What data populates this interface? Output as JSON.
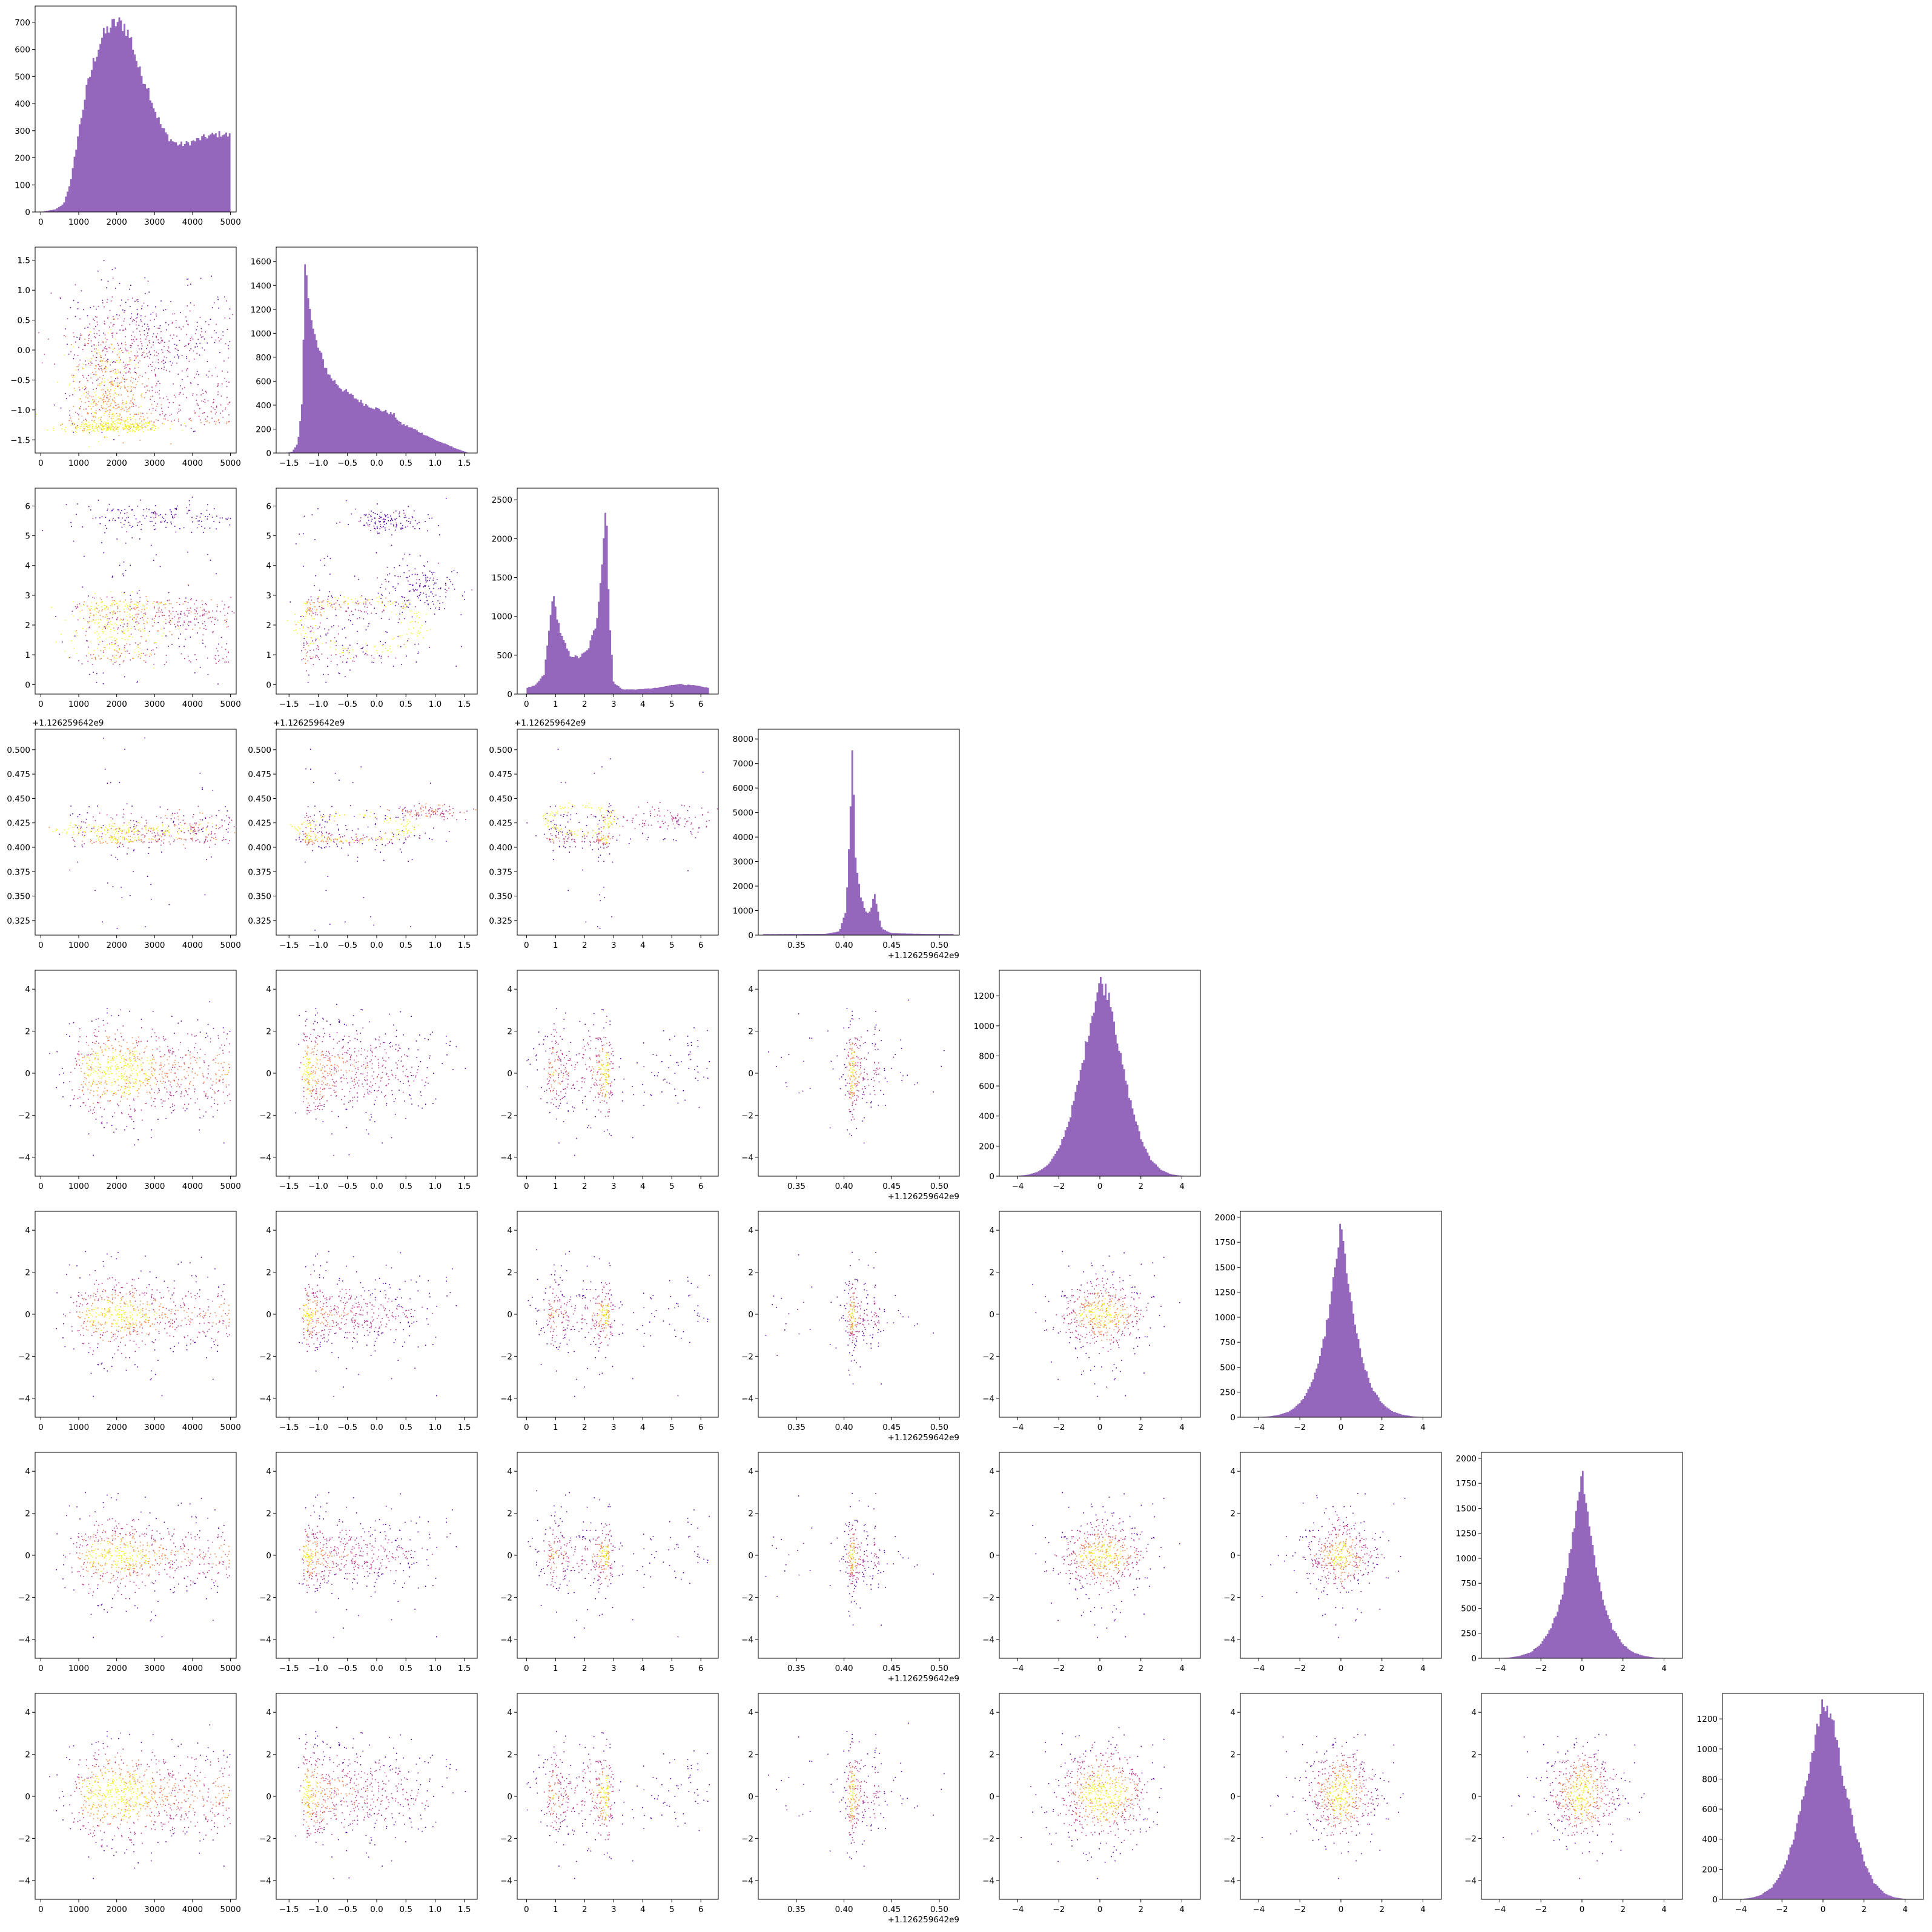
{
  "chart_data": {
    "type": "corner_plot",
    "description_free": true,
    "n_variables": 8,
    "colors": {
      "histogram": "#9467bd",
      "density_cmap": [
        "#0d0887",
        "#5302a3",
        "#8b0aa5",
        "#b83289",
        "#db5c68",
        "#f48849",
        "#febd2a",
        "#f0f921"
      ],
      "frame": "#000000"
    },
    "variables": [
      {
        "ticks": [
          0,
          1000,
          2000,
          3000,
          4000,
          5000
        ],
        "tick_labels": [
          "0",
          "1000",
          "2000",
          "3000",
          "4000",
          "5000"
        ],
        "range": [
          -150,
          5150
        ],
        "offset": ""
      },
      {
        "ticks": [
          -1.5,
          -1.0,
          -0.5,
          0.0,
          0.5,
          1.0,
          1.5
        ],
        "tick_labels": [
          "−1.5",
          "−1.0",
          "−0.5",
          "0.0",
          "0.5",
          "1.0",
          "1.5"
        ],
        "range": [
          -1.72,
          1.72
        ],
        "offset": ""
      },
      {
        "ticks": [
          0,
          1,
          2,
          3,
          4,
          5,
          6
        ],
        "tick_labels": [
          "0",
          "1",
          "2",
          "3",
          "4",
          "5",
          "6"
        ],
        "range": [
          -0.32,
          6.6
        ],
        "offset": ""
      },
      {
        "ticks": [
          0.325,
          0.35,
          0.375,
          0.4,
          0.425,
          0.45,
          0.475,
          0.5
        ],
        "tick_labels": [
          "0.325",
          "0.350",
          "0.375",
          "0.400",
          "0.425",
          "0.450",
          "0.475",
          "0.500"
        ],
        "xticks": [
          0.35,
          0.4,
          0.45,
          0.5
        ],
        "xtick_labels": [
          "0.35",
          "0.40",
          "0.45",
          "0.50"
        ],
        "range": [
          0.31,
          0.521
        ],
        "offset": "+1.126259642e9"
      },
      {
        "ticks": [
          -4,
          -2,
          0,
          2,
          4
        ],
        "tick_labels": [
          "−4",
          "−2",
          "0",
          "2",
          "4"
        ],
        "range": [
          -4.9,
          4.9
        ],
        "offset": ""
      },
      {
        "ticks": [
          -4,
          -2,
          0,
          2,
          4
        ],
        "tick_labels": [
          "−4",
          "−2",
          "0",
          "2",
          "4"
        ],
        "range": [
          -4.9,
          4.9
        ],
        "offset": ""
      },
      {
        "ticks": [
          -4,
          -2,
          0,
          2,
          4
        ],
        "tick_labels": [
          "−4",
          "−2",
          "0",
          "2",
          "4"
        ],
        "range": [
          -4.9,
          4.9
        ],
        "offset": ""
      },
      {
        "ticks": [
          -4,
          -2,
          0,
          2,
          4
        ],
        "tick_labels": [
          "−4",
          "−2",
          "0",
          "2",
          "4"
        ],
        "range": [
          -4.9,
          4.9
        ],
        "offset": ""
      }
    ],
    "histograms": [
      {
        "variable": 0,
        "yticks": [
          0,
          100,
          200,
          300,
          400,
          500,
          600,
          700
        ],
        "ylim": [
          0,
          760
        ],
        "x": [
          0,
          400,
          600,
          800,
          1000,
          1200,
          1400,
          1600,
          1800,
          2000,
          2200,
          2400,
          2600,
          2800,
          3000,
          3200,
          3400,
          3600,
          3800,
          4000,
          4200,
          4400,
          4600,
          4800,
          5000
        ],
        "counts": [
          0,
          10,
          30,
          120,
          300,
          450,
          560,
          640,
          680,
          700,
          690,
          630,
          520,
          470,
          380,
          310,
          270,
          250,
          250,
          260,
          270,
          280,
          285,
          290,
          280
        ]
      },
      {
        "variable": 1,
        "yticks": [
          0,
          200,
          400,
          600,
          800,
          1000,
          1200,
          1400,
          1600
        ],
        "ylim": [
          0,
          1720
        ],
        "x": [
          -1.55,
          -1.45,
          -1.35,
          -1.28,
          -1.22,
          -1.18,
          -1.1,
          -1.0,
          -0.9,
          -0.8,
          -0.6,
          -0.4,
          -0.2,
          0.0,
          0.2,
          0.3,
          0.4,
          0.6,
          0.8,
          1.0,
          1.2,
          1.4,
          1.55
        ],
        "counts": [
          0,
          10,
          80,
          400,
          1650,
          1400,
          1050,
          880,
          750,
          640,
          540,
          470,
          410,
          370,
          340,
          320,
          250,
          210,
          160,
          110,
          70,
          30,
          5
        ]
      },
      {
        "variable": 2,
        "yticks": [
          0,
          500,
          1000,
          1500,
          2000,
          2500
        ],
        "ylim": [
          0,
          2650
        ],
        "x": [
          0,
          0.3,
          0.6,
          0.8,
          0.9,
          1.0,
          1.2,
          1.5,
          1.8,
          2.1,
          2.4,
          2.6,
          2.75,
          2.85,
          3.0,
          3.3,
          3.8,
          4.5,
          5.2,
          5.8,
          6.28
        ],
        "counts": [
          80,
          110,
          250,
          900,
          1300,
          1100,
          750,
          500,
          470,
          560,
          900,
          1700,
          2550,
          1000,
          150,
          60,
          60,
          80,
          130,
          110,
          80
        ]
      },
      {
        "variable": 3,
        "yticks": [
          0,
          1000,
          2000,
          3000,
          4000,
          5000,
          6000,
          7000,
          8000
        ],
        "ylim": [
          0,
          8400
        ],
        "x": [
          0.315,
          0.38,
          0.395,
          0.402,
          0.406,
          0.409,
          0.412,
          0.418,
          0.424,
          0.428,
          0.432,
          0.436,
          0.44,
          0.45,
          0.48,
          0.515
        ],
        "counts": [
          40,
          50,
          150,
          1000,
          4500,
          7800,
          3200,
          1500,
          900,
          1000,
          1800,
          900,
          250,
          80,
          50,
          40
        ]
      },
      {
        "variable": 4,
        "yticks": [
          0,
          200,
          400,
          600,
          800,
          1000,
          1200
        ],
        "ylim": [
          0,
          1370
        ],
        "x": [
          -4.5,
          -4,
          -3.5,
          -3,
          -2.5,
          -2,
          -1.5,
          -1,
          -0.5,
          0,
          0.5,
          1,
          1.5,
          2,
          2.5,
          3,
          3.5,
          4,
          4.5
        ],
        "counts": [
          0,
          2,
          10,
          30,
          80,
          180,
          370,
          650,
          1000,
          1300,
          1200,
          800,
          500,
          250,
          110,
          40,
          12,
          3,
          0
        ]
      },
      {
        "variable": 5,
        "yticks": [
          0,
          250,
          500,
          750,
          1000,
          1250,
          1500,
          1750,
          2000
        ],
        "ylim": [
          0,
          2060
        ],
        "x": [
          -4.5,
          -4,
          -3.5,
          -3,
          -2.5,
          -2,
          -1.5,
          -1,
          -0.5,
          0,
          0.5,
          1,
          1.5,
          2,
          2.5,
          3,
          3.5,
          4,
          4.5
        ],
        "counts": [
          0,
          2,
          8,
          25,
          60,
          140,
          300,
          600,
          1150,
          1920,
          1150,
          600,
          300,
          140,
          60,
          25,
          8,
          2,
          0
        ]
      },
      {
        "variable": 6,
        "yticks": [
          0,
          250,
          500,
          750,
          1000,
          1250,
          1500,
          1750,
          2000
        ],
        "ylim": [
          0,
          2060
        ],
        "x": [
          -4.5,
          -4,
          -3.5,
          -3,
          -2.5,
          -2,
          -1.5,
          -1,
          -0.5,
          0,
          0.5,
          1,
          1.5,
          2,
          2.5,
          3,
          3.5,
          4,
          4.5
        ],
        "counts": [
          0,
          2,
          8,
          25,
          60,
          140,
          300,
          600,
          1150,
          1900,
          1150,
          600,
          300,
          140,
          60,
          25,
          8,
          2,
          0
        ]
      },
      {
        "variable": 7,
        "yticks": [
          0,
          200,
          400,
          600,
          800,
          1000,
          1200
        ],
        "ylim": [
          0,
          1370
        ],
        "x": [
          -4.5,
          -4,
          -3.5,
          -3,
          -2.5,
          -2,
          -1.5,
          -1,
          -0.5,
          0,
          0.5,
          1,
          1.5,
          2,
          2.5,
          3,
          3.5,
          4,
          4.5
        ],
        "counts": [
          0,
          2,
          10,
          30,
          80,
          180,
          370,
          650,
          1000,
          1300,
          1200,
          800,
          500,
          250,
          110,
          40,
          12,
          3,
          0
        ]
      }
    ],
    "density_features": {
      "0-1": [
        {
          "cx": 1800,
          "cy": -1.28,
          "rx": 1100,
          "ry": 0.07,
          "w": 1.0
        },
        {
          "cx": 1700,
          "cy": -0.6,
          "rx": 900,
          "ry": 0.7,
          "w": 0.75
        },
        {
          "cx": 2500,
          "cy": 0.2,
          "rx": 1800,
          "ry": 0.6,
          "w": 0.35
        }
      ],
      "0-2": [
        {
          "cx": 1900,
          "cy": 2.0,
          "rx": 1200,
          "ry": 0.85,
          "w": 1.0
        },
        {
          "cx": 3500,
          "cy": 2.3,
          "rx": 1700,
          "ry": 0.5,
          "w": 0.5
        },
        {
          "cx": 3000,
          "cy": 5.6,
          "rx": 1600,
          "ry": 0.4,
          "w": 0.25
        }
      ],
      "0-3": [
        {
          "cx": 2200,
          "cy": 0.418,
          "rx": 1700,
          "ry": 0.006,
          "w": 1.0
        },
        {
          "cx": 3800,
          "cy": 0.42,
          "rx": 1300,
          "ry": 0.014,
          "w": 0.5
        }
      ],
      "1-2": [
        {
          "ring": true,
          "cx": -0.3,
          "cy": 2.0,
          "rx": 1.0,
          "ry": 0.85,
          "w": 1.0
        },
        {
          "cx": 0.7,
          "cy": 3.3,
          "rx": 0.6,
          "ry": 0.7,
          "w": 0.25
        },
        {
          "cx": 0.2,
          "cy": 5.5,
          "rx": 0.5,
          "ry": 0.3,
          "w": 0.25
        }
      ],
      "1-3": [
        {
          "ring": true,
          "cx": -0.4,
          "cy": 0.42,
          "rx": 0.95,
          "ry": 0.013,
          "w": 1.0
        },
        {
          "cx": 0.9,
          "cy": 0.437,
          "rx": 0.5,
          "ry": 0.006,
          "w": 0.5
        }
      ],
      "2-3": [
        {
          "ring": true,
          "cx": 1.8,
          "cy": 0.428,
          "rx": 1.1,
          "ry": 0.014,
          "w": 1.0
        },
        {
          "cx": 4.8,
          "cy": 0.43,
          "rx": 1.8,
          "ry": 0.012,
          "w": 0.4
        }
      ]
    },
    "title": "",
    "xlabel": "",
    "ylabel": ""
  }
}
